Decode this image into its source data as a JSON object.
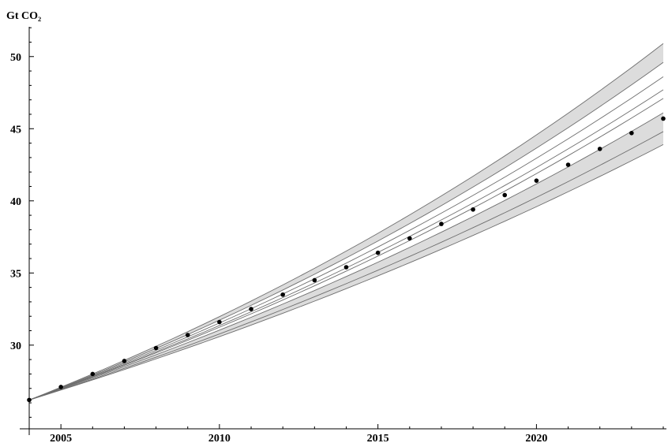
{
  "chart_data": {
    "type": "line",
    "title": "",
    "ylabel": "Gt CO₂",
    "xlabel": "",
    "xlim": [
      2004,
      2024
    ],
    "ylim": [
      24.2,
      52.5
    ],
    "x_ticks": [
      2005,
      2010,
      2015,
      2020
    ],
    "y_ticks": [
      30,
      35,
      40,
      45,
      50
    ],
    "grid": false,
    "legend": "none",
    "colors": {
      "band_fill": "#dcdcdc",
      "inner_fill": "#ffffff",
      "projection_line": "#6e6e6e",
      "points": "#000000",
      "axis": "#000000"
    },
    "start": {
      "year": 2004,
      "value": 26.2
    },
    "projection_lines": [
      {
        "end_2024": 43.9,
        "shade": "band"
      },
      {
        "end_2024": 44.8,
        "shade": "band"
      },
      {
        "end_2024": 46.1,
        "shade": "band"
      },
      {
        "end_2024": 47.1,
        "shade": "white"
      },
      {
        "end_2024": 47.7,
        "shade": "white"
      },
      {
        "end_2024": 48.6,
        "shade": "white"
      },
      {
        "end_2024": 49.6,
        "shade": "band"
      },
      {
        "end_2024": 50.9,
        "shade": "band"
      }
    ],
    "series": [
      {
        "x": [
          2004,
          2005,
          2006,
          2007,
          2008,
          2009,
          2010,
          2011,
          2012,
          2013,
          2014,
          2015,
          2016,
          2017,
          2018,
          2019,
          2020,
          2021,
          2022,
          2023,
          2024
        ],
        "values": [
          26.2,
          27.1,
          28.0,
          28.9,
          29.8,
          30.7,
          31.6,
          32.5,
          33.5,
          34.5,
          35.4,
          36.4,
          37.4,
          38.4,
          39.4,
          40.4,
          41.4,
          42.5,
          43.6,
          44.7,
          45.7
        ]
      }
    ]
  }
}
